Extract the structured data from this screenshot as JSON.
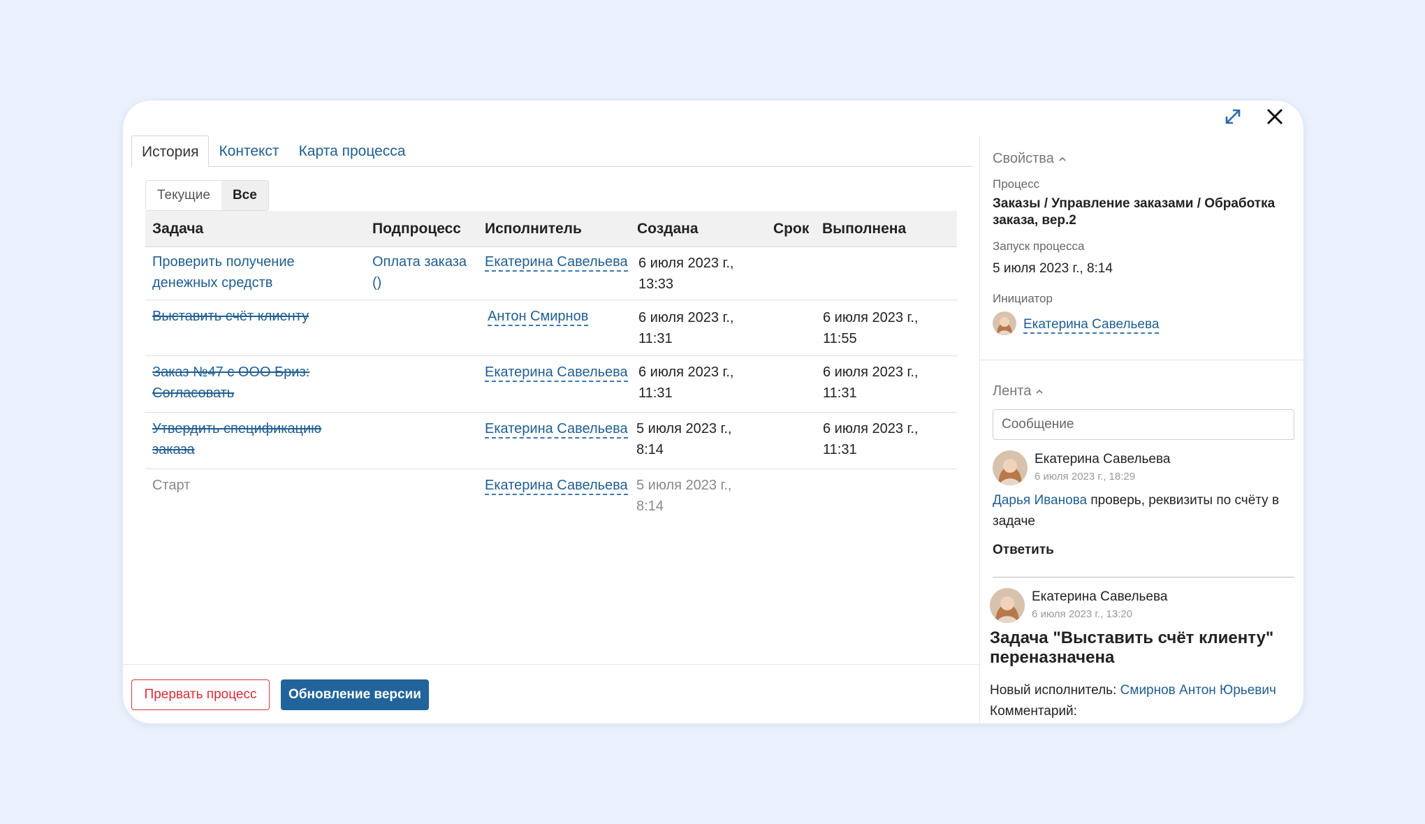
{
  "tabs": [
    "История",
    "Контекст",
    "Карта процесса"
  ],
  "filter": {
    "current": "Текущие",
    "all": "Все"
  },
  "columns": {
    "task": "Задача",
    "subprocess": "Подпроцесс",
    "executor": "Исполнитель",
    "created": "Создана",
    "deadline": "Срок",
    "done": "Выполнена"
  },
  "rows": [
    {
      "task_l1": "Проверить получение",
      "task_l2": "денежных средств",
      "sub_l1": "Оплата заказа",
      "sub_l2": "()",
      "executor": "Екатерина Савельева",
      "created_l1": "6 июля 2023 г.,",
      "created_l2": "13:33",
      "done_l1": "",
      "done_l2": ""
    },
    {
      "task_l1": "Выставить счёт клиенту",
      "task_l2": "",
      "sub_l1": "",
      "sub_l2": "",
      "executor": "Антон Смирнов",
      "created_l1": "6 июля 2023 г.,",
      "created_l2": "11:31",
      "done_l1": "6 июля 2023 г.,",
      "done_l2": "11:55"
    },
    {
      "task_l1": "Заказ №47 с ООО Бриз:",
      "task_l2": "Согласовать",
      "sub_l1": "",
      "sub_l2": "",
      "executor": "Екатерина Савельева",
      "created_l1": "6 июля 2023 г.,",
      "created_l2": "11:31",
      "done_l1": "6 июля 2023 г.,",
      "done_l2": "11:31"
    },
    {
      "task_l1": "Утвердить спецификацию",
      "task_l2": "заказа",
      "sub_l1": "",
      "sub_l2": "",
      "executor": "Екатерина Савельева",
      "created_l1": "5 июля 2023 г.,",
      "created_l2": "8:14",
      "done_l1": "6 июля 2023 г.,",
      "done_l2": "11:31"
    },
    {
      "task_l1": "Старт",
      "task_l2": "",
      "sub_l1": "",
      "sub_l2": "",
      "executor": "Екатерина Савельева",
      "created_l1": "5 июля 2023 г.,",
      "created_l2": "8:14",
      "done_l1": "",
      "done_l2": ""
    }
  ],
  "footer": {
    "abort": "Прервать процесс",
    "update": "Обновление версии"
  },
  "properties": {
    "title": "Свойства",
    "process_label": "Процесс",
    "process_l1": "Заказы / Управление заказами / Обработка",
    "process_l2": "заказа, вер.2",
    "start_label": "Запуск процесса",
    "start_value": "5 июля 2023 г., 8:14",
    "initiator_label": "Инициатор",
    "initiator": "Екатерина Савельева"
  },
  "feed": {
    "title": "Лента",
    "placeholder": "Сообщение",
    "posts": [
      {
        "author": "Екатерина Савельева",
        "date": "6 июля 2023 г., 18:29",
        "mention": "Дарья Иванова",
        "text_l1": "проверь, реквизиты по счёту в",
        "text_l2": "задаче",
        "reply": "Ответить"
      },
      {
        "author": "Екатерина Савельева",
        "date": "6 июля 2023 г., 13:20",
        "heading_l1": "Задача \"Выставить счёт клиенту\"",
        "heading_l2": "переназначена",
        "new_exec_label": "Новый исполнитель:",
        "new_exec": "Смирнов Антон Юрьевич",
        "comment_label": "Комментарий:"
      }
    ]
  },
  "colors": {
    "link": "#1f5e92",
    "primary": "#21649b",
    "danger": "#e0323c",
    "background": "#ebf1fc"
  },
  "icons": [
    "expand-icon",
    "close-icon",
    "chevron-up-icon",
    "avatar"
  ]
}
